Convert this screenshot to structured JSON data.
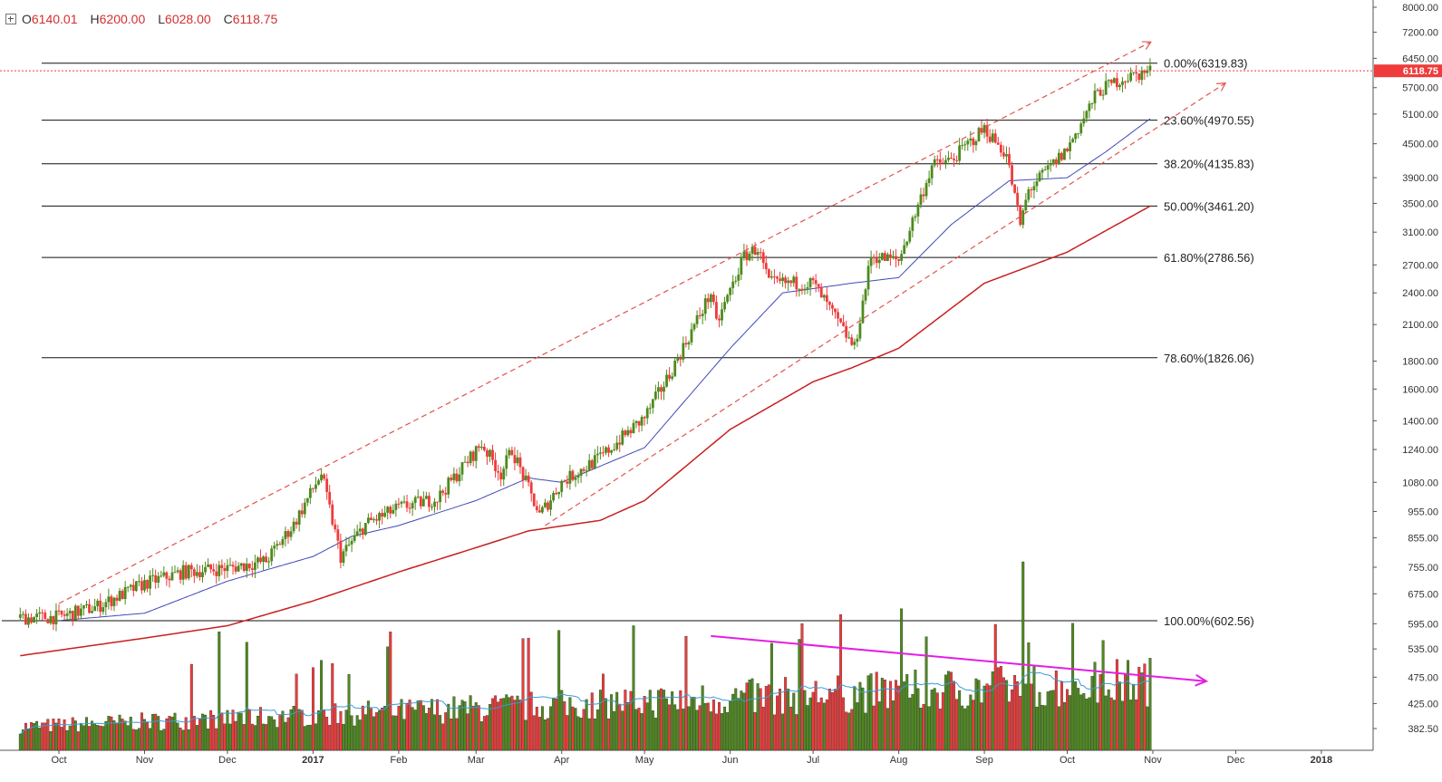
{
  "ohlc": {
    "o_label": "O",
    "o_value": "6140.01",
    "h_label": "H",
    "h_value": "6200.00",
    "l_label": "L",
    "l_value": "6028.00",
    "c_label": "C",
    "c_value": "6118.75"
  },
  "colors": {
    "up": "#4d8a1c",
    "down": "#ef3b3b",
    "vol_up": "#4d8a1c",
    "vol_down": "#ef3b3b",
    "ma_fast": "#3e4ab8",
    "ma_slow": "#c81f1f",
    "vol_ma": "#3c9bd6",
    "channel": "#e0554f",
    "trend": "#e41ee4",
    "price_label_bg": "#ef3b3b"
  },
  "chart_data": {
    "type": "candlestick",
    "price_axis": {
      "scale": "log",
      "ticks": [
        "8000.00",
        "7200.00",
        "6450.00",
        "5700.00",
        "5100.00",
        "4500.00",
        "3900.00",
        "3500.00",
        "3100.00",
        "2700.00",
        "2400.00",
        "2100.00",
        "1800.00",
        "1600.00",
        "1400.00",
        "1240.00",
        "1080.00",
        "955.00",
        "855.00",
        "755.00",
        "675.00",
        "595.00",
        "535.00",
        "475.00",
        "425.00",
        "382.50"
      ],
      "last_price_label": "6118.75"
    },
    "time_axis": {
      "labels": [
        "Oct",
        "Nov",
        "Dec",
        "2017",
        "Feb",
        "Mar",
        "Apr",
        "May",
        "Jun",
        "Jul",
        "Aug",
        "Sep",
        "Oct",
        "Nov",
        "Dec",
        "2018"
      ],
      "bold": [
        "2017",
        "2018"
      ]
    },
    "fibonacci": [
      {
        "label": "0.00%(6319.83)",
        "value": 6319.83
      },
      {
        "label": "23.60%(4970.55)",
        "value": 4970.55
      },
      {
        "label": "38.20%(4135.83)",
        "value": 4135.83
      },
      {
        "label": "50.00%(3461.20)",
        "value": 3461.2
      },
      {
        "label": "61.80%(2786.56)",
        "value": 2786.56
      },
      {
        "label": "78.60%(1826.06)",
        "value": 1826.06
      },
      {
        "label": "100.00%(602.56)",
        "value": 602.56
      }
    ],
    "price_path": [
      {
        "d": "2016-09-17",
        "p": 610
      },
      {
        "d": "2016-10-01",
        "p": 612
      },
      {
        "d": "2016-10-15",
        "p": 640
      },
      {
        "d": "2016-11-01",
        "p": 705
      },
      {
        "d": "2016-11-15",
        "p": 740
      },
      {
        "d": "2016-12-01",
        "p": 752
      },
      {
        "d": "2016-12-15",
        "p": 775
      },
      {
        "d": "2016-12-25",
        "p": 905
      },
      {
        "d": "2017-01-04",
        "p": 1120
      },
      {
        "d": "2017-01-11",
        "p": 790
      },
      {
        "d": "2017-01-20",
        "p": 905
      },
      {
        "d": "2017-02-01",
        "p": 970
      },
      {
        "d": "2017-02-15",
        "p": 1010
      },
      {
        "d": "2017-03-03",
        "p": 1270
      },
      {
        "d": "2017-03-10",
        "p": 1120
      },
      {
        "d": "2017-03-14",
        "p": 1240
      },
      {
        "d": "2017-03-24",
        "p": 940
      },
      {
        "d": "2017-04-01",
        "p": 1080
      },
      {
        "d": "2017-04-15",
        "p": 1200
      },
      {
        "d": "2017-05-01",
        "p": 1420
      },
      {
        "d": "2017-05-10",
        "p": 1700
      },
      {
        "d": "2017-05-25",
        "p": 2400
      },
      {
        "d": "2017-05-27",
        "p": 2100
      },
      {
        "d": "2017-06-06",
        "p": 2800
      },
      {
        "d": "2017-06-11",
        "p": 2900
      },
      {
        "d": "2017-06-15",
        "p": 2500
      },
      {
        "d": "2017-07-01",
        "p": 2500
      },
      {
        "d": "2017-07-16",
        "p": 1900
      },
      {
        "d": "2017-07-22",
        "p": 2800
      },
      {
        "d": "2017-08-01",
        "p": 2750
      },
      {
        "d": "2017-08-13",
        "p": 4100
      },
      {
        "d": "2017-08-20",
        "p": 4200
      },
      {
        "d": "2017-09-01",
        "p": 4800
      },
      {
        "d": "2017-09-09",
        "p": 4300
      },
      {
        "d": "2017-09-14",
        "p": 3200
      },
      {
        "d": "2017-09-17",
        "p": 3700
      },
      {
        "d": "2017-10-01",
        "p": 4400
      },
      {
        "d": "2017-10-12",
        "p": 5600
      },
      {
        "d": "2017-10-20",
        "p": 5900
      },
      {
        "d": "2017-10-31",
        "p": 6118.75
      }
    ],
    "ma_fast_path": [
      {
        "d": "2016-10-01",
        "p": 603
      },
      {
        "d": "2016-11-01",
        "p": 622
      },
      {
        "d": "2016-12-01",
        "p": 712
      },
      {
        "d": "2017-01-01",
        "p": 790
      },
      {
        "d": "2017-01-15",
        "p": 860
      },
      {
        "d": "2017-02-01",
        "p": 900
      },
      {
        "d": "2017-03-01",
        "p": 1000
      },
      {
        "d": "2017-03-20",
        "p": 1100
      },
      {
        "d": "2017-04-01",
        "p": 1080
      },
      {
        "d": "2017-05-01",
        "p": 1250
      },
      {
        "d": "2017-06-01",
        "p": 1900
      },
      {
        "d": "2017-06-20",
        "p": 2400
      },
      {
        "d": "2017-07-15",
        "p": 2500
      },
      {
        "d": "2017-08-01",
        "p": 2560
      },
      {
        "d": "2017-08-20",
        "p": 3200
      },
      {
        "d": "2017-09-10",
        "p": 3850
      },
      {
        "d": "2017-10-01",
        "p": 3900
      },
      {
        "d": "2017-10-15",
        "p": 4350
      },
      {
        "d": "2017-10-31",
        "p": 5000
      }
    ],
    "ma_slow_path": [
      {
        "d": "2016-09-17",
        "p": 520
      },
      {
        "d": "2016-11-01",
        "p": 560
      },
      {
        "d": "2016-12-01",
        "p": 590
      },
      {
        "d": "2017-01-01",
        "p": 655
      },
      {
        "d": "2017-02-01",
        "p": 740
      },
      {
        "d": "2017-03-01",
        "p": 820
      },
      {
        "d": "2017-03-20",
        "p": 880
      },
      {
        "d": "2017-04-15",
        "p": 920
      },
      {
        "d": "2017-05-01",
        "p": 1000
      },
      {
        "d": "2017-06-01",
        "p": 1350
      },
      {
        "d": "2017-07-01",
        "p": 1650
      },
      {
        "d": "2017-07-15",
        "p": 1750
      },
      {
        "d": "2017-08-01",
        "p": 1900
      },
      {
        "d": "2017-09-01",
        "p": 2500
      },
      {
        "d": "2017-10-01",
        "p": 2850
      },
      {
        "d": "2017-10-31",
        "p": 3460
      }
    ],
    "channel_upper": [
      {
        "d": "2016-10-01",
        "p": 648
      },
      {
        "d": "2017-10-31",
        "p": 6900
      }
    ],
    "channel_lower": [
      {
        "d": "2017-03-26",
        "p": 900
      },
      {
        "d": "2017-11-27",
        "p": 5800
      }
    ],
    "volume": {
      "ticks": [
        "535.00",
        "475.00",
        "425.00",
        "382.50"
      ],
      "peak_date": "2017-09-15",
      "trend_line": [
        {
          "d": "2017-05-25",
          "p": 565
        },
        {
          "d": "2017-11-20",
          "p": 467
        }
      ]
    }
  }
}
